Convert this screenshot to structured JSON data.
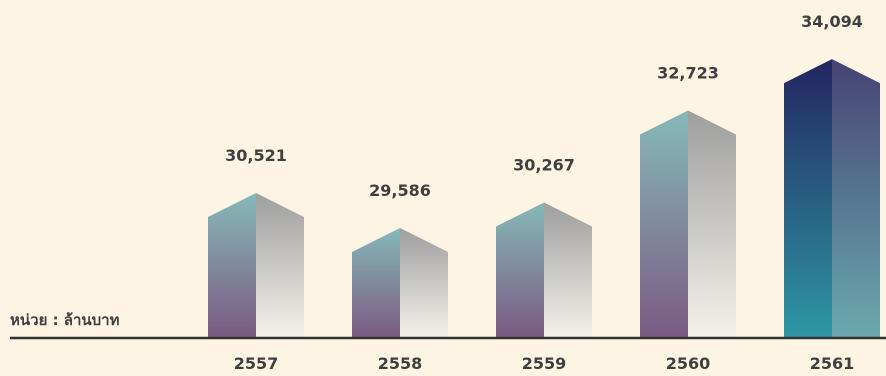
{
  "unit_label": "หน่วย : ล้านบาท",
  "colors": {
    "background": "#fdf4e3",
    "axis": "#333333",
    "text": "#3f3f3f",
    "bar_front_top": "#86b9b9",
    "bar_front_bottom": "#7a5a82",
    "bar_side_top": "#9e9e9e",
    "bar_side_bottom": "#f4f1ea",
    "highlight_front_top": "#232561",
    "highlight_front_bottom": "#2e96a4",
    "highlight_side_top": "#464373",
    "highlight_side_bottom": "#6aa9ae"
  },
  "chart_data": {
    "type": "bar",
    "categories": [
      "2557",
      "2558",
      "2559",
      "2560",
      "2561"
    ],
    "values": [
      30521,
      29586,
      30267,
      32723,
      34094
    ],
    "value_labels": [
      "30,521",
      "29,586",
      "30,267",
      "32,723",
      "34,094"
    ],
    "title": "",
    "xlabel": "",
    "ylabel": "หน่วย : ล้านบาท",
    "highlight_category": "2561",
    "grid": false,
    "legend": "none"
  }
}
